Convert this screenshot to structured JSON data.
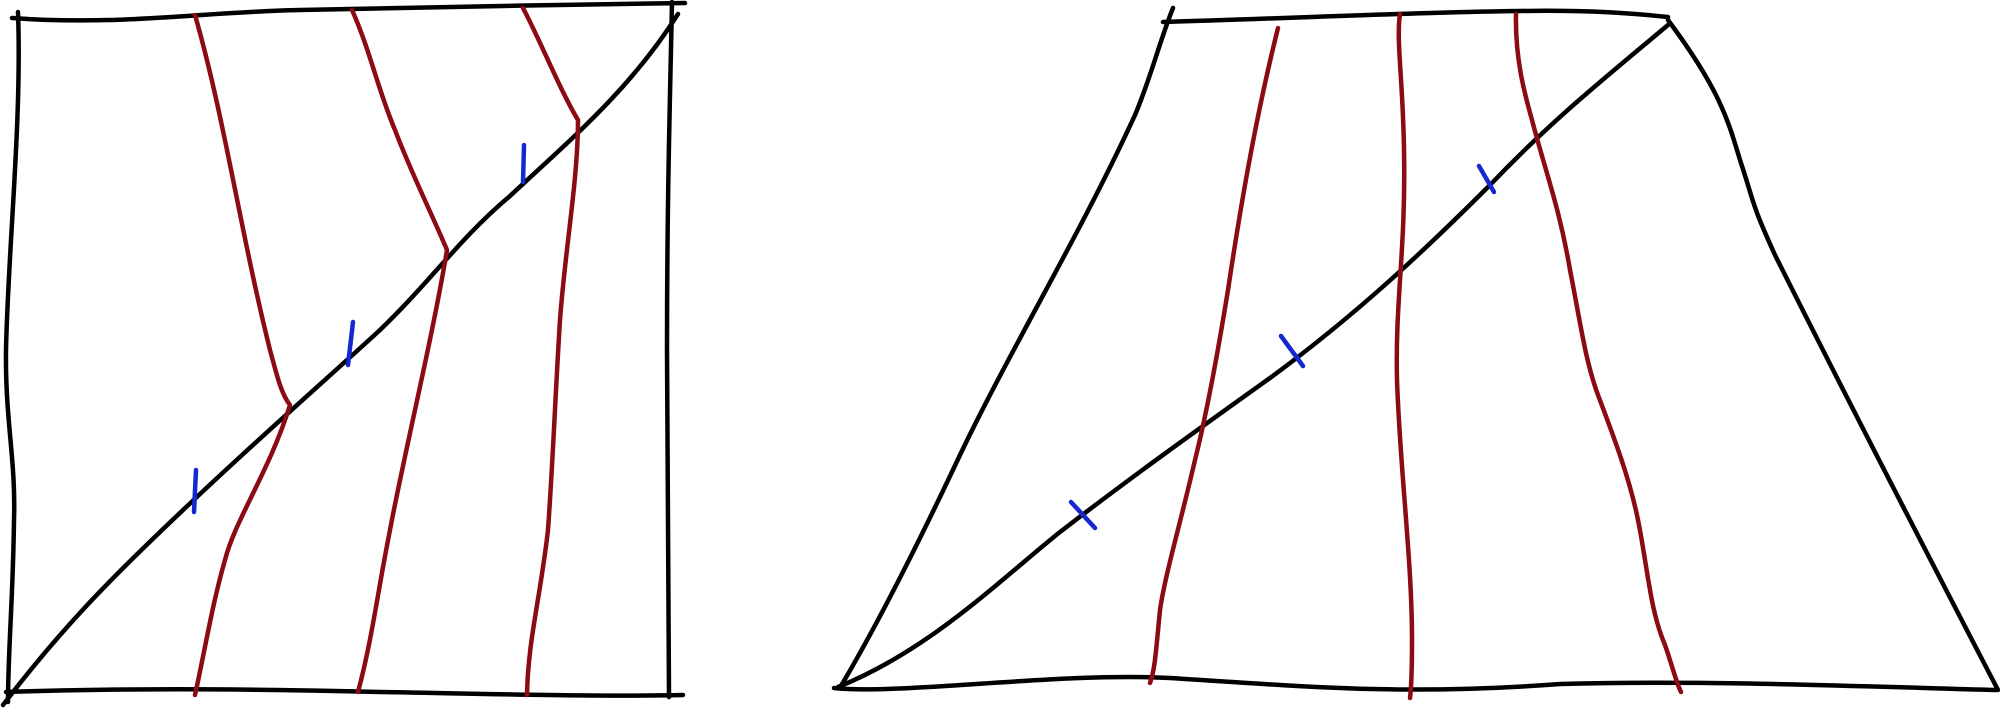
{
  "colors": {
    "background": "#ffffff",
    "frame": "#000000",
    "curve": "#8b0a14",
    "tick": "#1428d2"
  },
  "panels": [
    {
      "name": "left-panel",
      "shape": "square",
      "frame_sides": 4,
      "diagonal": true,
      "curve_count": 3,
      "tick_count": 3
    },
    {
      "name": "right-panel",
      "shape": "trapezoid",
      "frame_sides": 4,
      "diagonal": true,
      "curve_count": 3,
      "tick_count": 3
    }
  ]
}
